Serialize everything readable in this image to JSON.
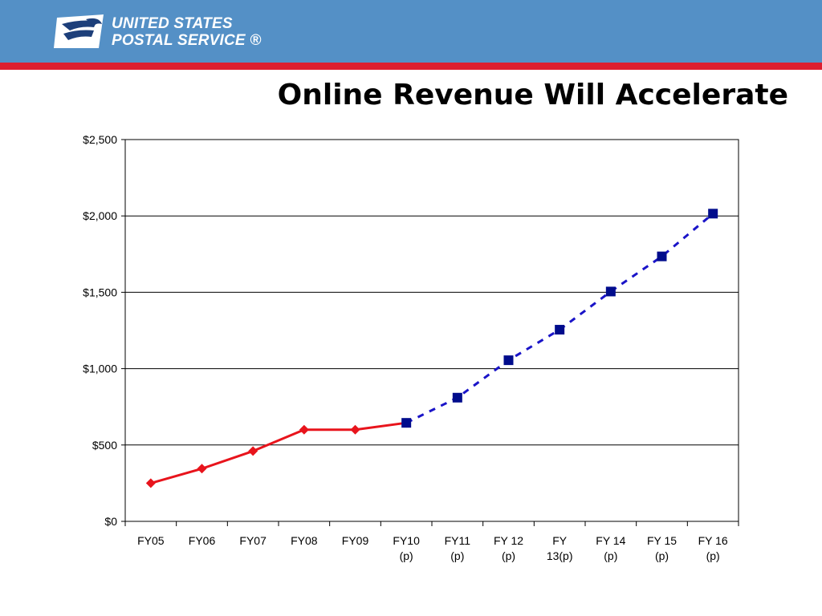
{
  "header": {
    "logo_line1": "UNITED STATES",
    "logo_line2": "POSTAL SERVICE",
    "logo_registered": "®",
    "logo_icon": "eagle-icon",
    "band_color": "#5490c6",
    "stripe_color": "#dd1e2f"
  },
  "title": "Online Revenue Will Accelerate",
  "chart_data": {
    "type": "line",
    "title": "",
    "xlabel": "",
    "ylabel": "",
    "ylim": [
      0,
      2500
    ],
    "yticks": [
      0,
      500,
      1000,
      1500,
      2000,
      2500
    ],
    "ytick_labels": [
      "$0",
      "$500",
      "$1,000",
      "$1,500",
      "$2,000",
      "$2,500"
    ],
    "grid": true,
    "legend": "none",
    "categories": [
      [
        "FY05"
      ],
      [
        "FY06"
      ],
      [
        "FY07"
      ],
      [
        "FY08"
      ],
      [
        "FY09"
      ],
      [
        "FY10",
        "(p)"
      ],
      [
        "FY11",
        "(p)"
      ],
      [
        "FY 12",
        "(p)"
      ],
      [
        "FY",
        "13(p)"
      ],
      [
        "FY 14",
        "(p)"
      ],
      [
        "FY 15",
        "(p)"
      ],
      [
        "FY 16",
        "(p)"
      ]
    ],
    "series": [
      {
        "style": "solid",
        "marker": "diamond",
        "color": "#e8141c",
        "values": [
          250,
          345,
          460,
          600,
          600,
          645,
          null,
          null,
          null,
          null,
          null,
          null
        ]
      },
      {
        "style": "dashed",
        "marker": "square",
        "color": "#1a14c8",
        "marker_color": "#000c8c",
        "values": [
          null,
          null,
          null,
          null,
          null,
          645,
          810,
          1055,
          1255,
          1505,
          1735,
          2015
        ]
      }
    ]
  }
}
